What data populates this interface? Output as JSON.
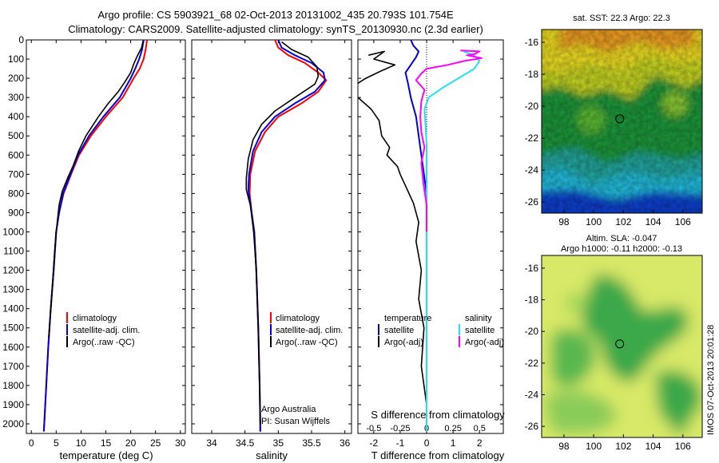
{
  "header": {
    "title_line1": "Argo profile: CS 5903921_68 02-Oct-2013 20131002_435 20.793S 101.754E",
    "title_line2": "Climatology: CARS2009. Satellite-adjusted climatology: synTS_20130930.nc (2.3d earlier)"
  },
  "colors": {
    "climatology": "#ff0000",
    "satellite": "#0000dd",
    "argo": "#000000",
    "salinity_satellite": "#22e0f0",
    "salinity_argo": "#ff00ff"
  },
  "chart_data": [
    {
      "id": "temperature",
      "type": "line",
      "xlabel": "temperature (deg C)",
      "xlim": [
        -1,
        31
      ],
      "xticks": [
        0,
        5,
        10,
        15,
        20,
        25,
        30
      ],
      "ylim": [
        0,
        2050
      ],
      "yticks": [
        0,
        100,
        200,
        300,
        400,
        500,
        600,
        700,
        800,
        900,
        1000,
        1100,
        1200,
        1300,
        1400,
        1500,
        1600,
        1700,
        1800,
        1900,
        2000
      ],
      "legend": {
        "placement": "lower-left",
        "entries": [
          "climatology",
          "satellite-adj. clim.",
          "Argo(..raw -QC)"
        ]
      },
      "series": [
        {
          "name": "climatology",
          "color_key": "climatology",
          "points": [
            [
              23.3,
              0
            ],
            [
              23.0,
              50
            ],
            [
              22.6,
              100
            ],
            [
              21.8,
              150
            ],
            [
              20.6,
              200
            ],
            [
              18.4,
              300
            ],
            [
              15.0,
              400
            ],
            [
              12.0,
              500
            ],
            [
              9.6,
              600
            ],
            [
              8.0,
              700
            ],
            [
              6.5,
              800
            ],
            [
              5.6,
              900
            ],
            [
              5.0,
              1000
            ],
            [
              4.5,
              1200
            ],
            [
              3.9,
              1400
            ],
            [
              3.4,
              1600
            ],
            [
              3.0,
              1800
            ],
            [
              2.6,
              2000
            ],
            [
              2.5,
              2040
            ]
          ]
        },
        {
          "name": "satellite-adj. clim.",
          "color_key": "satellite",
          "points": [
            [
              22.6,
              0
            ],
            [
              22.3,
              50
            ],
            [
              21.7,
              100
            ],
            [
              20.9,
              150
            ],
            [
              20.0,
              200
            ],
            [
              17.8,
              300
            ],
            [
              14.5,
              400
            ],
            [
              11.6,
              500
            ],
            [
              9.4,
              600
            ],
            [
              7.9,
              700
            ],
            [
              6.4,
              800
            ],
            [
              5.6,
              900
            ],
            [
              5.0,
              1000
            ],
            [
              4.5,
              1200
            ],
            [
              3.9,
              1400
            ],
            [
              3.4,
              1600
            ],
            [
              3.0,
              1800
            ],
            [
              2.6,
              2000
            ],
            [
              2.5,
              2040
            ]
          ]
        },
        {
          "name": "Argo(..raw -QC)",
          "color_key": "argo",
          "points": [
            [
              22.5,
              5
            ],
            [
              22.2,
              40
            ],
            [
              21.4,
              80
            ],
            [
              20.7,
              120
            ],
            [
              20.0,
              170
            ],
            [
              18.8,
              220
            ],
            [
              17.5,
              270
            ],
            [
              15.5,
              330
            ],
            [
              13.5,
              400
            ],
            [
              11.0,
              500
            ],
            [
              9.5,
              580
            ],
            [
              8.5,
              650
            ],
            [
              7.3,
              720
            ],
            [
              6.2,
              790
            ],
            [
              5.6,
              860
            ],
            [
              5.2,
              950
            ],
            [
              4.7,
              1100
            ],
            [
              4.2,
              1300
            ],
            [
              3.8,
              1450
            ],
            [
              3.5,
              1550
            ]
          ]
        }
      ]
    },
    {
      "id": "salinity",
      "type": "line",
      "xlabel": "salinity",
      "xlim": [
        33.7,
        36.1
      ],
      "xticks": [
        34,
        34.5,
        35,
        35.5,
        36
      ],
      "ylim": [
        0,
        2050
      ],
      "legend": {
        "placement": "lower-right",
        "entries": [
          "climatology",
          "satellite-adj. clim.",
          "Argo(..raw -QC)"
        ]
      },
      "annotation": [
        "Argo Australia",
        "PI: Susan Wijffels"
      ],
      "series": [
        {
          "name": "climatology",
          "color_key": "climatology",
          "points": [
            [
              34.95,
              0
            ],
            [
              35.0,
              40
            ],
            [
              35.15,
              80
            ],
            [
              35.4,
              120
            ],
            [
              35.6,
              170
            ],
            [
              35.72,
              210
            ],
            [
              35.6,
              270
            ],
            [
              35.35,
              330
            ],
            [
              35.0,
              400
            ],
            [
              34.8,
              480
            ],
            [
              34.65,
              580
            ],
            [
              34.58,
              700
            ],
            [
              34.57,
              800
            ],
            [
              34.6,
              900
            ],
            [
              34.64,
              1000
            ],
            [
              34.67,
              1200
            ],
            [
              34.7,
              1500
            ],
            [
              34.72,
              1800
            ],
            [
              34.73,
              2000
            ],
            [
              34.73,
              2040
            ]
          ]
        },
        {
          "name": "satellite-adj. clim.",
          "color_key": "satellite",
          "points": [
            [
              35.0,
              0
            ],
            [
              35.05,
              40
            ],
            [
              35.25,
              80
            ],
            [
              35.5,
              120
            ],
            [
              35.68,
              170
            ],
            [
              35.7,
              210
            ],
            [
              35.55,
              270
            ],
            [
              35.25,
              330
            ],
            [
              34.95,
              400
            ],
            [
              34.75,
              480
            ],
            [
              34.62,
              580
            ],
            [
              34.56,
              700
            ],
            [
              34.55,
              780
            ],
            [
              34.6,
              900
            ],
            [
              34.64,
              1000
            ],
            [
              34.67,
              1200
            ],
            [
              34.7,
              1500
            ],
            [
              34.72,
              1800
            ],
            [
              34.73,
              2000
            ],
            [
              34.73,
              2040
            ]
          ]
        },
        {
          "name": "Argo(..raw -QC)",
          "color_key": "argo",
          "points": [
            [
              35.05,
              10
            ],
            [
              35.2,
              50
            ],
            [
              35.45,
              90
            ],
            [
              35.58,
              140
            ],
            [
              35.6,
              190
            ],
            [
              35.55,
              230
            ],
            [
              35.25,
              300
            ],
            [
              34.95,
              370
            ],
            [
              34.75,
              440
            ],
            [
              34.62,
              520
            ],
            [
              34.55,
              620
            ],
            [
              34.52,
              720
            ],
            [
              34.52,
              780
            ],
            [
              34.58,
              860
            ],
            [
              34.63,
              1000
            ],
            [
              34.67,
              1200
            ],
            [
              34.7,
              1500
            ],
            [
              34.72,
              1800
            ],
            [
              34.73,
              2000
            ]
          ]
        }
      ]
    },
    {
      "id": "difference",
      "type": "line",
      "xlabel_bottom": "T difference from climatology",
      "xlabel_top": "S difference from climatology",
      "xlim": [
        -2.6,
        2.9
      ],
      "xticks_bottom": [
        -2,
        -1,
        0,
        1,
        2
      ],
      "xticks_top": [
        "-0.5",
        "-0.25",
        "0",
        "0.25",
        "0.5"
      ],
      "legend": {
        "placement": "lower",
        "columns": [
          {
            "heading": "temperature",
            "entries": [
              "satellite",
              "Argo(-adj)"
            ]
          },
          {
            "heading": "salinity",
            "entries": [
              "satellite",
              "Argo(-adj)"
            ]
          }
        ]
      },
      "series": [
        {
          "name": "temperature satellite",
          "color_key": "satellite",
          "points": [
            [
              -0.6,
              0
            ],
            [
              -0.5,
              30
            ],
            [
              -0.3,
              60
            ],
            [
              -0.4,
              90
            ],
            [
              -0.6,
              130
            ],
            [
              -0.8,
              170
            ],
            [
              -0.7,
              230
            ],
            [
              -0.6,
              300
            ],
            [
              -0.4,
              400
            ],
            [
              -0.3,
              500
            ],
            [
              -0.2,
              600
            ],
            [
              -0.1,
              700
            ],
            [
              0,
              800
            ],
            [
              0,
              1000
            ],
            [
              0,
              2040
            ]
          ]
        },
        {
          "name": "temperature Argo(-adj)",
          "color_key": "argo",
          "points": [
            [
              -2.2,
              80
            ],
            [
              -1.6,
              60
            ],
            [
              -2.0,
              100
            ],
            [
              -1.2,
              130
            ],
            [
              -1.7,
              160
            ],
            [
              -2.3,
              200
            ],
            [
              -3.0,
              260
            ],
            [
              -2.6,
              300
            ],
            [
              -2.1,
              360
            ],
            [
              -1.8,
              420
            ],
            [
              -1.7,
              500
            ],
            [
              -1.4,
              560
            ],
            [
              -1.5,
              600
            ],
            [
              -1.1,
              660
            ],
            [
              -1.0,
              700
            ],
            [
              -0.8,
              760
            ],
            [
              -0.5,
              850
            ],
            [
              -0.3,
              950
            ],
            [
              -0.4,
              1050
            ],
            [
              -0.2,
              1200
            ],
            [
              -0.3,
              1350
            ],
            [
              -0.1,
              1500
            ],
            [
              -0.2,
              1700
            ],
            [
              0,
              1900
            ],
            [
              0,
              2000
            ]
          ]
        },
        {
          "name": "salinity satellite",
          "color_key": "salinity_satellite",
          "points": [
            [
              0.35,
              60
            ],
            [
              0.45,
              80
            ],
            [
              0.5,
              110
            ],
            [
              0.45,
              150
            ],
            [
              0.3,
              200
            ],
            [
              0.15,
              250
            ],
            [
              0.02,
              300
            ],
            [
              -0.02,
              360
            ],
            [
              -0.01,
              450
            ],
            [
              0,
              550
            ],
            [
              0,
              700
            ],
            [
              0,
              900
            ],
            [
              0,
              2040
            ]
          ]
        },
        {
          "name": "salinity Argo(-adj)",
          "color_key": "salinity_argo",
          "points": [
            [
              0.32,
              55
            ],
            [
              0.5,
              60
            ],
            [
              0.45,
              75
            ],
            [
              0.38,
              80
            ],
            [
              0.52,
              95
            ],
            [
              0.35,
              110
            ],
            [
              0.2,
              130
            ],
            [
              0.0,
              150
            ],
            [
              -0.05,
              175
            ],
            [
              -0.1,
              210
            ],
            [
              -0.02,
              260
            ],
            [
              -0.05,
              320
            ],
            [
              -0.06,
              400
            ],
            [
              -0.05,
              480
            ],
            [
              -0.02,
              560
            ],
            [
              -0.05,
              640
            ],
            [
              -0.03,
              750
            ],
            [
              0,
              860
            ],
            [
              0,
              1000
            ]
          ]
        }
      ]
    }
  ],
  "maps": [
    {
      "id": "sst",
      "title": "sat. SST: 22.3  Argo: 22.3",
      "xticks": [
        98,
        100,
        102,
        104,
        106
      ],
      "yticks": [
        -16,
        -18,
        -20,
        -22,
        -24,
        -26
      ],
      "xlim": [
        96.5,
        107.3
      ],
      "ylim": [
        -26.7,
        -15.2
      ],
      "marker": [
        101.75,
        -20.79
      ],
      "colors": {
        "warm": "#f2a020",
        "mid": "#f0e020",
        "green": "#1f9a3a",
        "cyan": "#20c0e0",
        "blue": "#1040d0"
      }
    },
    {
      "id": "sla",
      "title_line1": "Altim. SLA: -0.047",
      "title_line2": "Argo h1000: -0.11 h2000: -0.13",
      "xticks": [
        98,
        100,
        102,
        104,
        106
      ],
      "yticks": [
        -16,
        -18,
        -20,
        -22,
        -24,
        -26
      ],
      "xlim": [
        96.5,
        107.3
      ],
      "ylim": [
        -26.7,
        -15.2
      ],
      "marker": [
        101.75,
        -20.79
      ],
      "colors": {
        "bg": "#d8e868",
        "mid": "#a8d85a",
        "green": "#3aa848"
      }
    }
  ],
  "footer": {
    "stamp": "IMOS 07-Oct-2013 20:01:28"
  }
}
